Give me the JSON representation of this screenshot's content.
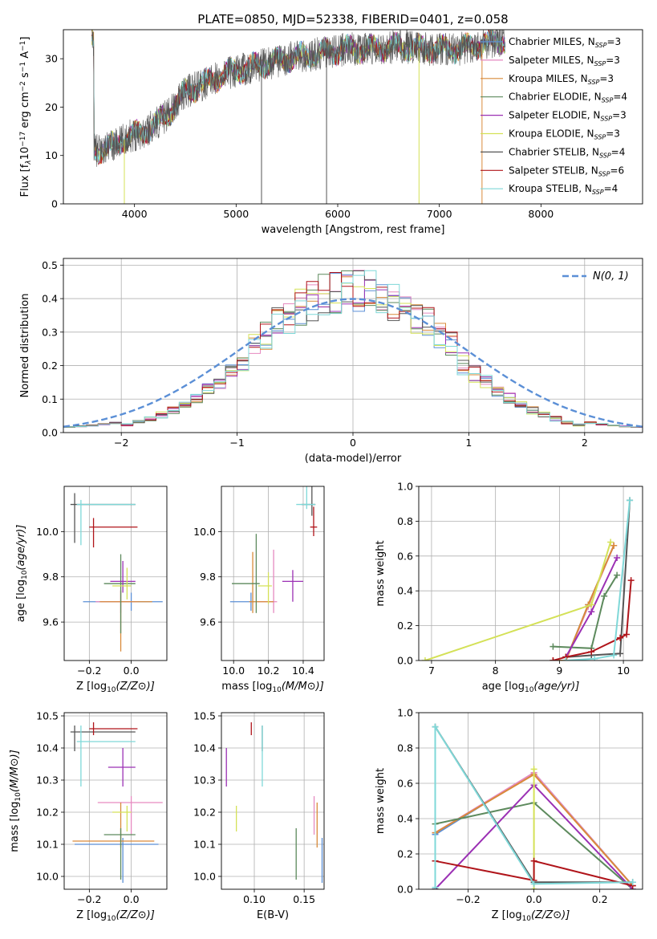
{
  "title": "PLATE=0850, MJD=52338, FIBERID=0401, z=0.058",
  "model_colors": [
    "#5b8fd6",
    "#e68ac0",
    "#d98a3a",
    "#5d8a5d",
    "#9b30b4",
    "#d4e157",
    "#555555",
    "#b0141a",
    "#7fd8d8"
  ],
  "chart_data": [
    {
      "id": "spectrum",
      "type": "line",
      "title": "PLATE=0850, MJD=52338, FIBERID=0401, z=0.058",
      "xlabel": "wavelength [Angstrom, rest frame]",
      "ylabel_parts": [
        "Flux [f",
        "λ",
        "10",
        "−17",
        " erg cm",
        "−2",
        " s",
        "−1",
        " A",
        "−1",
        "]"
      ],
      "xlim": [
        3300,
        9000
      ],
      "ylim": [
        0,
        36
      ],
      "xticks": [
        4000,
        5000,
        6000,
        7000,
        8000
      ],
      "yticks": [
        0,
        10,
        20,
        30
      ],
      "grid": false,
      "legend_position": "right",
      "legend": [
        {
          "name": "Chabrier MILES",
          "nssp": "3"
        },
        {
          "name": "Salpeter MILES",
          "nssp": "3"
        },
        {
          "name": "Kroupa MILES",
          "nssp": "3"
        },
        {
          "name": "Chabrier ELODIE",
          "nssp": "4"
        },
        {
          "name": "Salpeter ELODIE",
          "nssp": "3"
        },
        {
          "name": "Kroupa ELODIE",
          "nssp": "3"
        },
        {
          "name": "Chabrier STELIB",
          "nssp": "4"
        },
        {
          "name": "Salpeter STELIB",
          "nssp": "6"
        },
        {
          "name": "Kroupa STELIB",
          "nssp": "4"
        }
      ],
      "continuum": [
        [
          3600,
          11
        ],
        [
          3800,
          12
        ],
        [
          3950,
          14
        ],
        [
          4100,
          15
        ],
        [
          4300,
          18
        ],
        [
          4500,
          23
        ],
        [
          4700,
          25
        ],
        [
          4900,
          27
        ],
        [
          5100,
          28
        ],
        [
          5300,
          29
        ],
        [
          5500,
          30
        ],
        [
          5800,
          31
        ],
        [
          6100,
          32
        ],
        [
          6300,
          32
        ],
        [
          6600,
          32.5
        ],
        [
          6900,
          32
        ],
        [
          7200,
          32
        ],
        [
          7500,
          33.5
        ],
        [
          7650,
          34
        ]
      ],
      "data_range": [
        3580,
        7650
      ]
    },
    {
      "id": "residuals",
      "type": "histogram",
      "xlabel": "(data-model)/error",
      "ylabel": "Normed distribution",
      "xlim": [
        -2.5,
        2.5
      ],
      "ylim": [
        0,
        0.52
      ],
      "xticks": [
        -2,
        -1,
        0,
        1,
        2
      ],
      "yticks": [
        0.0,
        0.1,
        0.2,
        0.3,
        0.4,
        0.5
      ],
      "grid": true,
      "legend_position": "top-right",
      "reference_curve": "N(0, 1)"
    },
    {
      "id": "age-vs-z",
      "type": "scatter",
      "xlabel": "Z [log10(Z/Z⊙)]",
      "ylabel": "age  [log10(age/yr)]",
      "xlim": [
        -0.32,
        0.17
      ],
      "ylim": [
        9.43,
        10.2
      ],
      "xticks": [
        -0.2,
        0.0
      ],
      "yticks": [
        9.6,
        9.8,
        10.0
      ],
      "grid": true,
      "points": [
        {
          "x": 0.0,
          "y": 9.69,
          "xerr": [
            0.23,
            0.15
          ],
          "yerr": [
            0.04,
            0.04
          ]
        },
        {
          "x": -0.05,
          "y": 9.69,
          "xerr": [
            0.12,
            0.08
          ],
          "yerr": [
            0.05,
            0.05
          ]
        },
        {
          "x": -0.05,
          "y": 9.69,
          "xerr": [
            0.1,
            0.15
          ],
          "yerr": [
            0.22,
            0.05
          ]
        },
        {
          "x": -0.05,
          "y": 9.77,
          "xerr": [
            0.08,
            0.07
          ],
          "yerr": [
            0.22,
            0.13
          ]
        },
        {
          "x": -0.04,
          "y": 9.78,
          "xerr": [
            0.06,
            0.06
          ],
          "yerr": [
            0.05,
            0.09
          ]
        },
        {
          "x": -0.02,
          "y": 9.76,
          "xerr": [
            0.07,
            0.02
          ],
          "yerr": [
            0.06,
            0.08
          ]
        },
        {
          "x": -0.27,
          "y": 10.12,
          "xerr": [
            0.02,
            0.29
          ],
          "yerr": [
            0.17,
            0.05
          ]
        },
        {
          "x": -0.18,
          "y": 10.02,
          "xerr": [
            0.02,
            0.21
          ],
          "yerr": [
            0.09,
            0.04
          ]
        },
        {
          "x": -0.24,
          "y": 10.12,
          "xerr": [
            0.02,
            0.26
          ],
          "yerr": [
            0.18,
            0.02
          ]
        }
      ]
    },
    {
      "id": "age-vs-mass",
      "type": "scatter",
      "xlabel": "mass [log10(M/M⊙)]",
      "ylabel": "",
      "xlim": [
        9.93,
        10.52
      ],
      "ylim": [
        9.43,
        10.2
      ],
      "xticks": [
        10.0,
        10.2,
        10.4
      ],
      "yticks": [
        9.6,
        9.8,
        10.0
      ],
      "grid": true,
      "points": [
        {
          "x": 10.1,
          "y": 9.69,
          "xerr": [
            0.12,
            0.02
          ],
          "yerr": [
            0.04,
            0.04
          ]
        },
        {
          "x": 10.23,
          "y": 9.69,
          "xerr": [
            0.1,
            0.02
          ],
          "yerr": [
            0.05,
            0.23
          ]
        },
        {
          "x": 10.11,
          "y": 9.69,
          "xerr": [
            0.02,
            0.12
          ],
          "yerr": [
            0.05,
            0.22
          ]
        },
        {
          "x": 10.13,
          "y": 9.77,
          "xerr": [
            0.14,
            0.02
          ],
          "yerr": [
            0.13,
            0.22
          ]
        },
        {
          "x": 10.34,
          "y": 9.78,
          "xerr": [
            0.06,
            0.06
          ],
          "yerr": [
            0.09,
            0.05
          ]
        },
        {
          "x": 10.2,
          "y": 9.76,
          "xerr": [
            0.06,
            0.02
          ],
          "yerr": [
            0.08,
            0.06
          ]
        },
        {
          "x": 10.45,
          "y": 10.12,
          "xerr": [
            0.06,
            0.02
          ],
          "yerr": [
            0.05,
            0.16
          ]
        },
        {
          "x": 10.46,
          "y": 10.02,
          "xerr": [
            0.02,
            0.02
          ],
          "yerr": [
            0.04,
            0.09
          ]
        },
        {
          "x": 10.42,
          "y": 10.12,
          "xerr": [
            0.06,
            0.05
          ],
          "yerr": [
            0.02,
            0.18
          ]
        }
      ]
    },
    {
      "id": "mass-weight-vs-age",
      "type": "line",
      "xlabel": "age  [log10(age/yr)]",
      "ylabel": "mass weight",
      "xlim": [
        6.8,
        10.3
      ],
      "ylim": [
        0,
        1
      ],
      "xticks": [
        7,
        8,
        9,
        10
      ],
      "yticks": [
        0.0,
        0.2,
        0.4,
        0.6,
        0.8,
        1.0
      ],
      "grid": true,
      "series": [
        {
          "x": [
            8.9,
            9.1,
            9.45,
            9.85
          ],
          "y": [
            0.0,
            0.0,
            0.32,
            0.66
          ]
        },
        {
          "x": [
            8.9,
            9.1,
            9.45,
            9.85
          ],
          "y": [
            0.0,
            0.0,
            0.31,
            0.66
          ]
        },
        {
          "x": [
            8.9,
            9.1,
            9.45,
            9.85
          ],
          "y": [
            0.0,
            0.0,
            0.32,
            0.66
          ]
        },
        {
          "x": [
            8.9,
            9.5,
            9.7,
            9.9
          ],
          "y": [
            0.08,
            0.07,
            0.37,
            0.49
          ]
        },
        {
          "x": [
            9.1,
            9.5,
            9.9
          ],
          "y": [
            0.02,
            0.28,
            0.59
          ]
        },
        {
          "x": [
            6.9,
            9.5,
            9.8
          ],
          "y": [
            0.0,
            0.32,
            0.68
          ]
        },
        {
          "x": [
            9.1,
            9.5,
            9.95,
            10.1
          ],
          "y": [
            0.02,
            0.03,
            0.04,
            0.92
          ]
        },
        {
          "x": [
            8.9,
            9.1,
            9.5,
            9.95,
            10.05,
            10.12
          ],
          "y": [
            0.0,
            0.02,
            0.05,
            0.13,
            0.15,
            0.46
          ]
        },
        {
          "x": [
            9.1,
            9.55,
            9.85,
            10.1
          ],
          "y": [
            0.0,
            0.01,
            0.03,
            0.92
          ]
        }
      ]
    },
    {
      "id": "mass-vs-z",
      "type": "scatter",
      "xlabel": "Z [log10(Z/Z⊙)]",
      "ylabel": "mass [log10(M/M⊙)]",
      "xlim": [
        -0.32,
        0.17
      ],
      "ylim": [
        9.96,
        10.51
      ],
      "xticks": [
        -0.2,
        0.0
      ],
      "yticks": [
        10.0,
        10.1,
        10.2,
        10.3,
        10.4,
        10.5
      ],
      "grid": true,
      "points": [
        {
          "x": -0.04,
          "y": 10.1,
          "xerr": [
            0.23,
            0.17
          ],
          "yerr": [
            0.12,
            0.02
          ]
        },
        {
          "x": 0.0,
          "y": 10.23,
          "xerr": [
            0.16,
            0.15
          ],
          "yerr": [
            0.1,
            0.02
          ]
        },
        {
          "x": -0.05,
          "y": 10.11,
          "xerr": [
            0.23,
            0.16
          ],
          "yerr": [
            0.02,
            0.12
          ]
        },
        {
          "x": -0.05,
          "y": 10.13,
          "xerr": [
            0.08,
            0.07
          ],
          "yerr": [
            0.14,
            0.02
          ]
        },
        {
          "x": -0.04,
          "y": 10.34,
          "xerr": [
            0.07,
            0.06
          ],
          "yerr": [
            0.06,
            0.06
          ]
        },
        {
          "x": -0.02,
          "y": 10.2,
          "xerr": [
            0.07,
            0.02
          ],
          "yerr": [
            0.06,
            0.02
          ]
        },
        {
          "x": -0.27,
          "y": 10.45,
          "xerr": [
            0.02,
            0.29
          ],
          "yerr": [
            0.06,
            0.02
          ]
        },
        {
          "x": -0.18,
          "y": 10.46,
          "xerr": [
            0.02,
            0.21
          ],
          "yerr": [
            0.02,
            0.02
          ]
        },
        {
          "x": -0.24,
          "y": 10.42,
          "xerr": [
            0.02,
            0.26
          ],
          "yerr": [
            0.14,
            0.05
          ]
        }
      ]
    },
    {
      "id": "mass-vs-ebv",
      "type": "scatter",
      "xlabel": "E(B-V)",
      "ylabel": "",
      "xlim": [
        0.067,
        0.17
      ],
      "ylim": [
        9.96,
        10.51
      ],
      "xticks": [
        0.1,
        0.15
      ],
      "yticks": [
        10.0,
        10.1,
        10.2,
        10.3,
        10.4,
        10.5
      ],
      "grid": true,
      "points": [
        {
          "x": 0.168,
          "y": 10.1,
          "yerr": [
            0.12,
            0.02
          ]
        },
        {
          "x": 0.16,
          "y": 10.23,
          "yerr": [
            0.1,
            0.02
          ]
        },
        {
          "x": 0.163,
          "y": 10.11,
          "yerr": [
            0.02,
            0.12
          ]
        },
        {
          "x": 0.142,
          "y": 10.13,
          "yerr": [
            0.14,
            0.02
          ]
        },
        {
          "x": 0.072,
          "y": 10.34,
          "yerr": [
            0.06,
            0.06
          ]
        },
        {
          "x": 0.082,
          "y": 10.2,
          "yerr": [
            0.06,
            0.02
          ]
        },
        {
          "x": 0.108,
          "y": 10.45,
          "yerr": [
            0.06,
            0.02
          ]
        },
        {
          "x": 0.097,
          "y": 10.46,
          "yerr": [
            0.02,
            0.02
          ]
        },
        {
          "x": 0.108,
          "y": 10.42,
          "yerr": [
            0.14,
            0.05
          ]
        }
      ]
    },
    {
      "id": "mass-weight-vs-z",
      "type": "line",
      "xlabel": "Z [log10(Z/Z⊙)]",
      "ylabel": "mass weight",
      "xlim": [
        -0.35,
        0.33
      ],
      "ylim": [
        0,
        1
      ],
      "xticks": [
        -0.2,
        0.0,
        0.2
      ],
      "yticks": [
        0.0,
        0.2,
        0.4,
        0.6,
        0.8,
        1.0
      ],
      "grid": true,
      "series": [
        {
          "x": [
            -0.3,
            0.0,
            0.3
          ],
          "y": [
            0.31,
            0.66,
            0.02
          ]
        },
        {
          "x": [
            -0.3,
            0.0,
            0.3
          ],
          "y": [
            0.32,
            0.66,
            0.02
          ]
        },
        {
          "x": [
            -0.3,
            0.0,
            0.3
          ],
          "y": [
            0.32,
            0.65,
            0.02
          ]
        },
        {
          "x": [
            -0.3,
            0.0,
            0.3
          ],
          "y": [
            0.37,
            0.49,
            0.0
          ]
        },
        {
          "x": [
            -0.3,
            0.0,
            0.3
          ],
          "y": [
            0.0,
            0.59,
            0.0
          ]
        },
        {
          "x": [
            0.0,
            0.0
          ],
          "y": [
            0.0,
            0.68
          ]
        },
        {
          "x": [
            -0.3,
            -0.3,
            0.0,
            0.3
          ],
          "y": [
            0.0,
            0.92,
            0.04,
            0.04
          ]
        },
        {
          "x": [
            -0.3,
            0.0,
            0.0,
            0.3
          ],
          "y": [
            0.16,
            0.05,
            0.16,
            0.02
          ]
        },
        {
          "x": [
            -0.3,
            -0.3,
            0.0,
            0.3
          ],
          "y": [
            0.01,
            0.92,
            0.03,
            0.04
          ]
        }
      ]
    }
  ]
}
